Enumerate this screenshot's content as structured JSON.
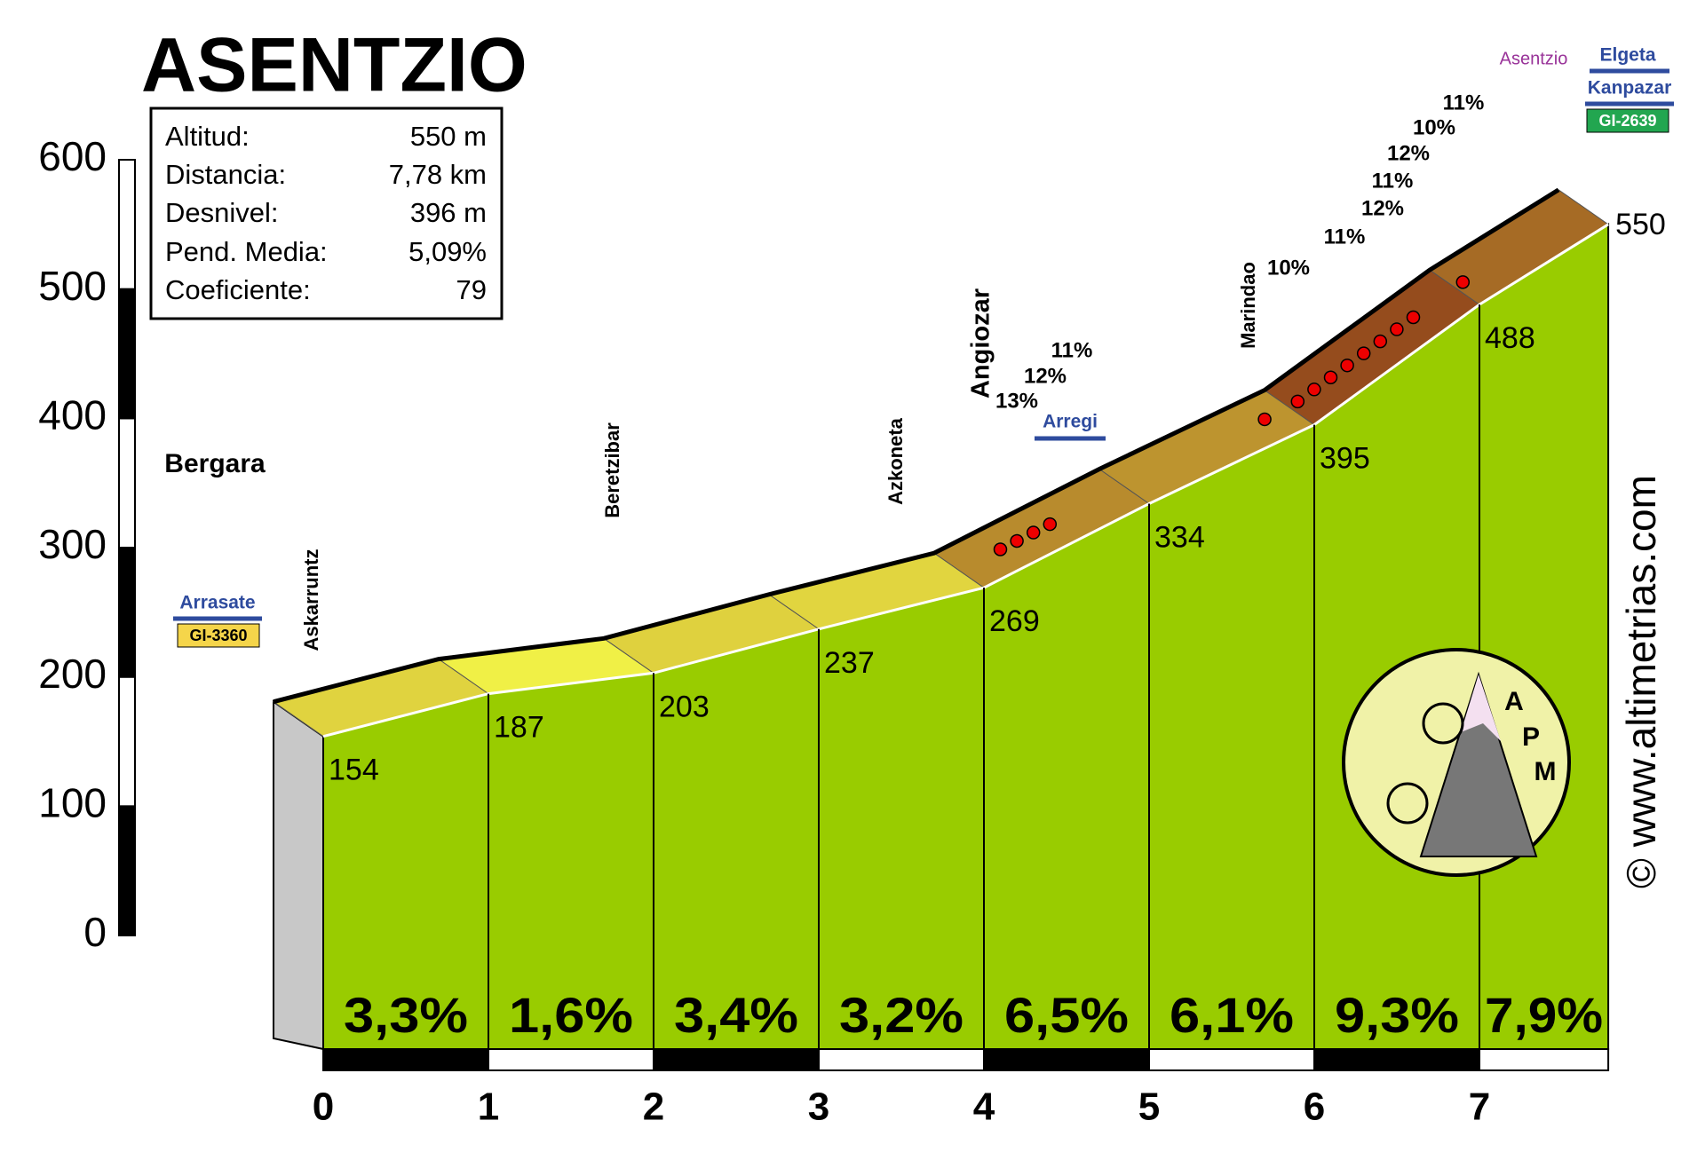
{
  "chart_data": {
    "type": "area",
    "title": "ASENTZIO",
    "x": [
      0,
      1,
      2,
      3,
      4,
      5,
      6,
      7,
      7.78
    ],
    "values": [
      154,
      187,
      203,
      237,
      269,
      334,
      395,
      488,
      550
    ],
    "gradients": [
      3.3,
      1.6,
      3.4,
      3.2,
      6.5,
      6.1,
      9.3,
      7.9
    ],
    "gradient_labels": [
      "3,3%",
      "1,6%",
      "3,4%",
      "3,2%",
      "6,5%",
      "6,1%",
      "9,3%",
      "7,9%"
    ],
    "ylim": [
      0,
      600
    ],
    "yticks": [
      0,
      100,
      200,
      300,
      400,
      500,
      600
    ],
    "xlim": [
      0,
      7.78
    ],
    "xticks": [
      0,
      1,
      2,
      3,
      4,
      5,
      6,
      7
    ],
    "info": [
      [
        "Altitud:",
        "550 m"
      ],
      [
        "Distancia:",
        "7,78 km"
      ],
      [
        "Desnivel:",
        "396 m"
      ],
      [
        "Pend. Media:",
        "5,09%"
      ],
      [
        "Coeficiente:",
        "79"
      ]
    ],
    "places": [
      "Bergara",
      "Askarruntz",
      "Beretzibar",
      "Azkoneta",
      "Angiozar",
      "Marindao",
      "Asentzio"
    ],
    "roads": [
      "Arrasate",
      "GI-3360",
      "Arregi",
      "Elgeta",
      "Kanpazar",
      "GI-2639"
    ],
    "steep_labels": [
      "13%",
      "12%",
      "11%",
      "10%",
      "11%",
      "12%",
      "11%",
      "12%",
      "10%",
      "11%"
    ],
    "logo": [
      "A",
      "P",
      "M"
    ],
    "watermark": "© www.altimetrias.com"
  }
}
